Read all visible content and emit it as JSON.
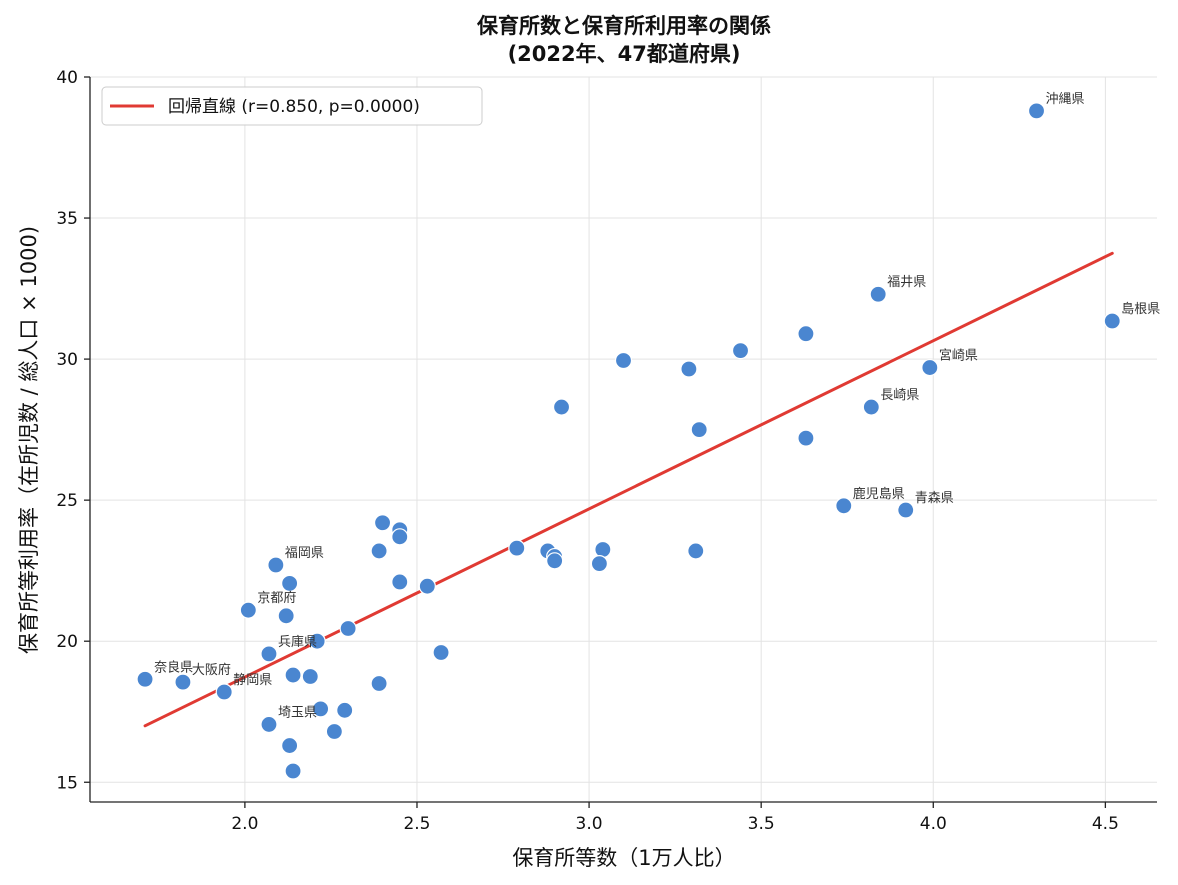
{
  "chart_data": {
    "type": "scatter",
    "title_line1": "保育所数と保育所利用率の関係",
    "title_line2": "(2022年、47都道府県)",
    "xlabel": "保育所等数（1万人比）",
    "ylabel": "保育所等利用率（在所児数 / 総人口 × 1000)",
    "xlim": [
      1.55,
      4.65
    ],
    "ylim": [
      14.3,
      40.0
    ],
    "xticks": [
      2.0,
      2.5,
      3.0,
      3.5,
      4.0,
      4.5
    ],
    "xtick_labels": [
      "2.0",
      "2.5",
      "3.0",
      "3.5",
      "4.0",
      "4.5"
    ],
    "yticks": [
      15,
      20,
      25,
      30,
      35,
      40
    ],
    "ytick_labels": [
      "15",
      "20",
      "25",
      "30",
      "35",
      "40"
    ],
    "grid": true,
    "legend_position": "top-left",
    "point_color": "#4a86d0",
    "line_color": "#e03a33",
    "regression": {
      "label": "回帰直線 (r=0.850, p=0.0000)",
      "x": [
        1.71,
        4.52
      ],
      "y": [
        17.0,
        33.75
      ]
    },
    "points": [
      {
        "x": 4.3,
        "y": 38.8,
        "label": "沖縄県"
      },
      {
        "x": 3.84,
        "y": 32.3,
        "label": "福井県"
      },
      {
        "x": 4.52,
        "y": 31.35,
        "label": "島根県"
      },
      {
        "x": 3.99,
        "y": 29.7,
        "label": "宮崎県"
      },
      {
        "x": 3.82,
        "y": 28.3,
        "label": "長崎県"
      },
      {
        "x": 3.74,
        "y": 24.8,
        "label": "鹿児島県"
      },
      {
        "x": 3.92,
        "y": 24.65,
        "label": "青森県"
      },
      {
        "x": 2.09,
        "y": 22.7,
        "label": "福岡県"
      },
      {
        "x": 2.01,
        "y": 21.1,
        "label": "京都府"
      },
      {
        "x": 2.07,
        "y": 19.55,
        "label": "兵庫県"
      },
      {
        "x": 1.71,
        "y": 18.65,
        "label": "奈良県"
      },
      {
        "x": 1.82,
        "y": 18.55,
        "label": "大阪府"
      },
      {
        "x": 1.94,
        "y": 18.2,
        "label": "静岡県"
      },
      {
        "x": 2.07,
        "y": 17.05,
        "label": "埼玉県"
      },
      {
        "x": 3.63,
        "y": 30.9,
        "label": ""
      },
      {
        "x": 3.44,
        "y": 30.3,
        "label": ""
      },
      {
        "x": 3.1,
        "y": 29.95,
        "label": ""
      },
      {
        "x": 3.29,
        "y": 29.65,
        "label": ""
      },
      {
        "x": 2.92,
        "y": 28.3,
        "label": ""
      },
      {
        "x": 3.32,
        "y": 27.5,
        "label": ""
      },
      {
        "x": 3.63,
        "y": 27.2,
        "label": ""
      },
      {
        "x": 2.4,
        "y": 24.2,
        "label": ""
      },
      {
        "x": 2.45,
        "y": 23.95,
        "label": ""
      },
      {
        "x": 2.45,
        "y": 23.7,
        "label": ""
      },
      {
        "x": 2.39,
        "y": 23.2,
        "label": ""
      },
      {
        "x": 2.79,
        "y": 23.3,
        "label": ""
      },
      {
        "x": 2.88,
        "y": 23.2,
        "label": ""
      },
      {
        "x": 2.9,
        "y": 23.0,
        "label": ""
      },
      {
        "x": 2.9,
        "y": 22.85,
        "label": ""
      },
      {
        "x": 3.04,
        "y": 23.25,
        "label": ""
      },
      {
        "x": 3.03,
        "y": 22.75,
        "label": ""
      },
      {
        "x": 3.31,
        "y": 23.2,
        "label": ""
      },
      {
        "x": 2.13,
        "y": 22.05,
        "label": ""
      },
      {
        "x": 2.45,
        "y": 22.1,
        "label": ""
      },
      {
        "x": 2.53,
        "y": 21.95,
        "label": ""
      },
      {
        "x": 2.12,
        "y": 20.9,
        "label": ""
      },
      {
        "x": 2.3,
        "y": 20.45,
        "label": ""
      },
      {
        "x": 2.21,
        "y": 20.0,
        "label": ""
      },
      {
        "x": 2.57,
        "y": 19.6,
        "label": ""
      },
      {
        "x": 2.14,
        "y": 18.8,
        "label": ""
      },
      {
        "x": 2.19,
        "y": 18.75,
        "label": ""
      },
      {
        "x": 2.39,
        "y": 18.5,
        "label": ""
      },
      {
        "x": 2.22,
        "y": 17.6,
        "label": ""
      },
      {
        "x": 2.29,
        "y": 17.55,
        "label": ""
      },
      {
        "x": 2.26,
        "y": 16.8,
        "label": ""
      },
      {
        "x": 2.13,
        "y": 16.3,
        "label": ""
      },
      {
        "x": 2.14,
        "y": 15.4,
        "label": ""
      }
    ]
  }
}
